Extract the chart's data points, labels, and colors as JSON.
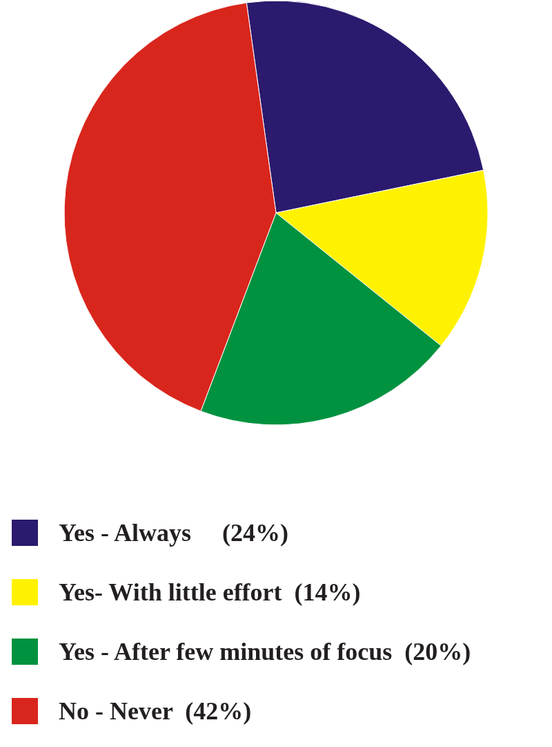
{
  "chart_data": {
    "type": "pie",
    "categories": [
      "Yes - Always     (24%)",
      "Yes- With little effort  (14%)",
      "Yes - After few minutes of focus  (20%)",
      "No - Never  (42%)"
    ],
    "values": [
      24,
      14,
      20,
      42
    ],
    "colors": [
      "#2b1a6e",
      "#fff200",
      "#00923f",
      "#d9261c"
    ],
    "legend": "bottom"
  }
}
